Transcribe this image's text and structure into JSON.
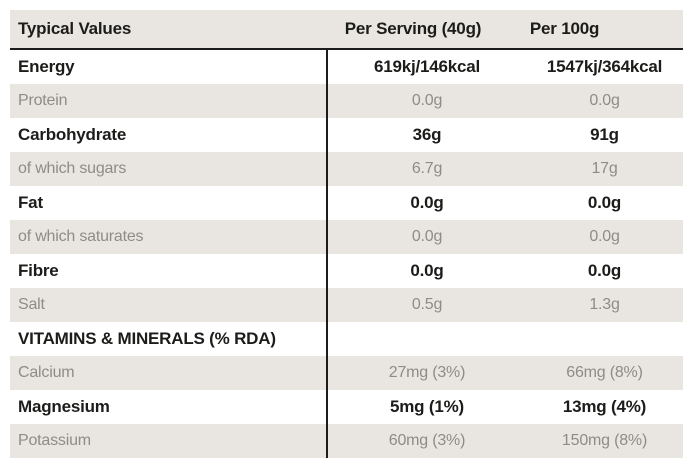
{
  "table": {
    "header": {
      "col1": "Typical Values",
      "col2": "Per Serving (40g)",
      "col3": "Per 100g"
    },
    "rows": [
      {
        "label": "Energy",
        "per_serving": "619kj/146kcal",
        "per_100g": "1547kj/364kcal",
        "emphasis": true,
        "shaded": false
      },
      {
        "label": "Protein",
        "per_serving": "0.0g",
        "per_100g": "0.0g",
        "emphasis": false,
        "shaded": true
      },
      {
        "label": "Carbohydrate",
        "per_serving": "36g",
        "per_100g": "91g",
        "emphasis": true,
        "shaded": false
      },
      {
        "label": "of which sugars",
        "per_serving": "6.7g",
        "per_100g": "17g",
        "emphasis": false,
        "shaded": true
      },
      {
        "label": "Fat",
        "per_serving": "0.0g",
        "per_100g": "0.0g",
        "emphasis": true,
        "shaded": false
      },
      {
        "label": "of which saturates",
        "per_serving": "0.0g",
        "per_100g": "0.0g",
        "emphasis": false,
        "shaded": true
      },
      {
        "label": "Fibre",
        "per_serving": "0.0g",
        "per_100g": "0.0g",
        "emphasis": true,
        "shaded": false
      },
      {
        "label": "Salt",
        "per_serving": "0.5g",
        "per_100g": "1.3g",
        "emphasis": false,
        "shaded": true
      },
      {
        "label": "VITAMINS & MINERALS (% RDA)",
        "per_serving": "",
        "per_100g": "",
        "emphasis": true,
        "shaded": false
      },
      {
        "label": "Calcium",
        "per_serving": "27mg (3%)",
        "per_100g": "66mg (8%)",
        "emphasis": false,
        "shaded": true
      },
      {
        "label": "Magnesium",
        "per_serving": "5mg (1%)",
        "per_100g": "13mg (4%)",
        "emphasis": true,
        "shaded": false
      },
      {
        "label": "Potassium",
        "per_serving": "60mg (3%)",
        "per_100g": "150mg (8%)",
        "emphasis": false,
        "shaded": true
      }
    ]
  },
  "colors": {
    "shaded_row_bg": "#e9e6e2",
    "header_bg": "#e9e6e2",
    "text_dark": "#1c1c1a",
    "text_muted": "#8f8b86",
    "divider": "#1c1c1a"
  }
}
